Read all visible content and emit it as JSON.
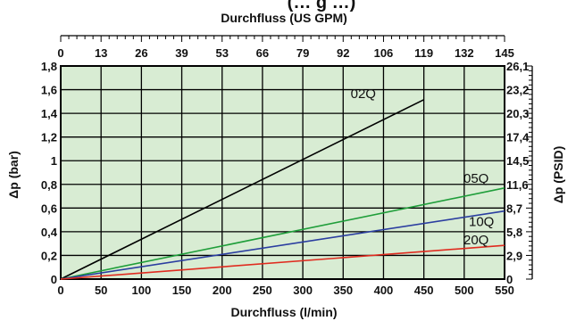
{
  "chart_data": {
    "type": "line",
    "title_fragment": "(… g …)",
    "x_bottom": {
      "label": "Durchfluss (l/min)",
      "range": [
        0,
        550
      ],
      "ticks": [
        "0",
        "50",
        "100",
        "150",
        "200",
        "250",
        "300",
        "350",
        "400",
        "450",
        "500",
        "550"
      ]
    },
    "x_top": {
      "label": "Durchfluss (US GPM)",
      "ticks": [
        "0",
        "13",
        "26",
        "39",
        "53",
        "66",
        "79",
        "92",
        "106",
        "119",
        "132",
        "145"
      ]
    },
    "y_left": {
      "label": "Δp (bar)",
      "range": [
        0,
        1.8
      ],
      "ticks": [
        "0",
        "0,2",
        "0,4",
        "0,6",
        "0,8",
        "1",
        "1,2",
        "1,4",
        "1,6",
        "1,8"
      ]
    },
    "y_right": {
      "label": "Δp (PSID)",
      "ticks": [
        "0",
        "2,9",
        "5,8",
        "8,7",
        "11,6",
        "14,5",
        "17,4",
        "20,3",
        "23,2",
        "26,1"
      ]
    },
    "grid": true,
    "colors": {
      "plot_background": "#d8ecd3",
      "grid": "#000000"
    },
    "series": [
      {
        "name": "02Q",
        "color": "#000000",
        "x": [
          0,
          450
        ],
        "y": [
          0,
          1.515
        ]
      },
      {
        "name": "05Q",
        "color": "#1f9e3a",
        "x": [
          0,
          550
        ],
        "y": [
          0,
          0.77
        ]
      },
      {
        "name": "10Q",
        "color": "#2b3ea0",
        "x": [
          0,
          550
        ],
        "y": [
          0,
          0.575
        ]
      },
      {
        "name": "20Q",
        "color": "#e02b1f",
        "x": [
          0,
          550
        ],
        "y": [
          0,
          0.285
        ]
      }
    ]
  }
}
